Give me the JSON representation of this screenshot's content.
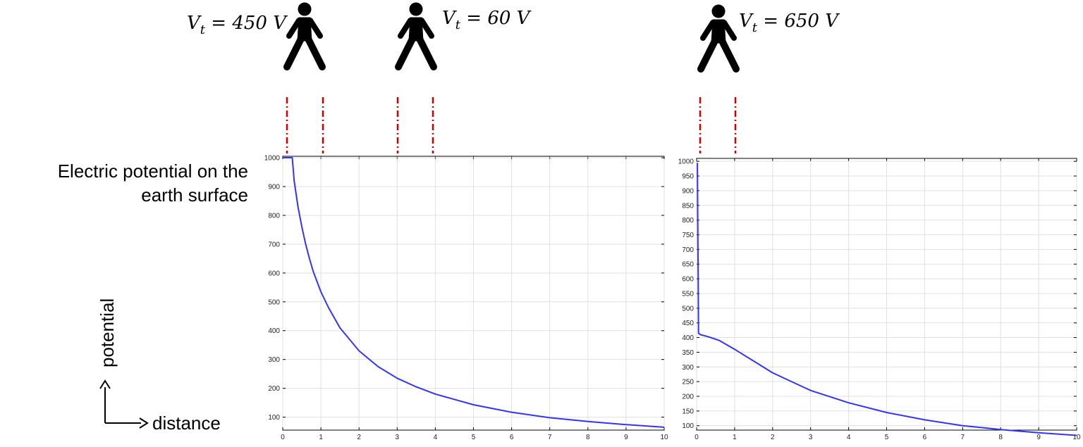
{
  "annotation": {
    "title_line1": "Electric potential on the",
    "title_line2": "earth surface",
    "y_axis_word": "potential",
    "x_axis_word": "distance"
  },
  "persons": [
    {
      "label_main": "V",
      "label_sub": "t",
      "label_rest": " = 450 V",
      "step_start": 0,
      "step_end": 1
    },
    {
      "label_main": "V",
      "label_sub": "t",
      "label_rest": " = 60 V",
      "step_start": 3,
      "step_end": 4
    },
    {
      "label_main": "V",
      "label_sub": "t",
      "label_rest": " = 650 V",
      "step_start": 0,
      "step_end": 1
    }
  ],
  "colors": {
    "curve": "#3333ff",
    "guide": "#cc0000",
    "grid": "#e0e0e0",
    "person": "#000000"
  },
  "chart_data": [
    {
      "type": "line",
      "xlim": [
        0,
        10
      ],
      "ylim": [
        55,
        1005
      ],
      "xticks": [
        0,
        1,
        2,
        3,
        4,
        5,
        6,
        7,
        8,
        9,
        10
      ],
      "yticks": [
        100,
        200,
        300,
        400,
        500,
        600,
        700,
        800,
        900,
        1000
      ],
      "grid": true,
      "series": [
        {
          "x": [
            0,
            0.25,
            0.3,
            0.4,
            0.5,
            0.6,
            0.7,
            0.8,
            1,
            1.2,
            1.5,
            2,
            2.5,
            3,
            3.5,
            4,
            5,
            6,
            7,
            8,
            9,
            10
          ],
          "y": [
            1000,
            1000,
            920,
            830,
            760,
            700,
            650,
            605,
            535,
            480,
            410,
            330,
            275,
            235,
            205,
            180,
            143,
            117,
            98,
            85,
            74,
            65
          ]
        }
      ]
    },
    {
      "type": "line",
      "xlim": [
        0,
        10
      ],
      "ylim": [
        85,
        1010
      ],
      "xticks": [
        0,
        1,
        2,
        3,
        4,
        5,
        6,
        7,
        8,
        9,
        10
      ],
      "yticks": [
        100,
        150,
        200,
        250,
        300,
        350,
        400,
        450,
        500,
        550,
        600,
        650,
        700,
        750,
        800,
        850,
        900,
        950,
        1000
      ],
      "grid": true,
      "series": [
        {
          "x": [
            0.02,
            0.03,
            0.04,
            0.05,
            0.1,
            0.3,
            0.6,
            1,
            1.5,
            2,
            3,
            4,
            5,
            6,
            7,
            8,
            9,
            10
          ],
          "y": [
            995,
            800,
            600,
            415,
            410,
            403,
            390,
            360,
            320,
            280,
            220,
            178,
            145,
            120,
            100,
            87,
            76,
            67
          ]
        }
      ]
    }
  ]
}
